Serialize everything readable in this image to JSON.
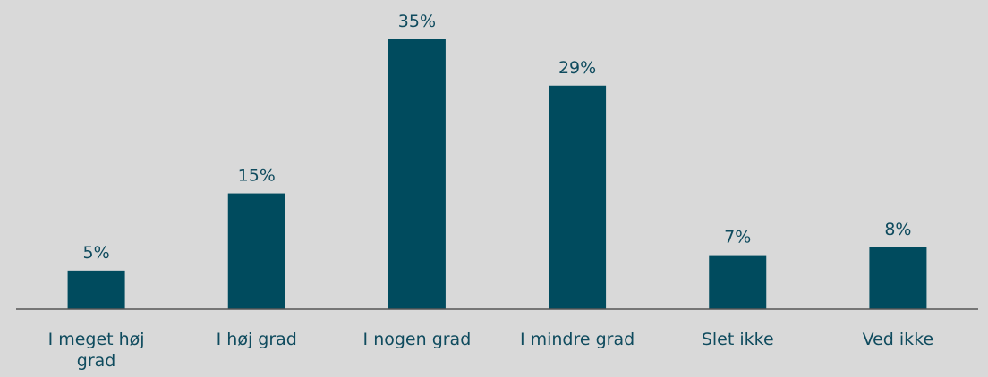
{
  "chart_data": {
    "type": "bar",
    "categories": [
      "I meget høj grad",
      "I høj grad",
      "I nogen grad",
      "I mindre grad",
      "Slet ikke",
      "Ved ikke"
    ],
    "values": [
      5,
      15,
      35,
      29,
      7,
      8
    ],
    "value_labels": [
      "5%",
      "15%",
      "35%",
      "29%",
      "7%",
      "8%"
    ],
    "color": "#004b5e"
  }
}
